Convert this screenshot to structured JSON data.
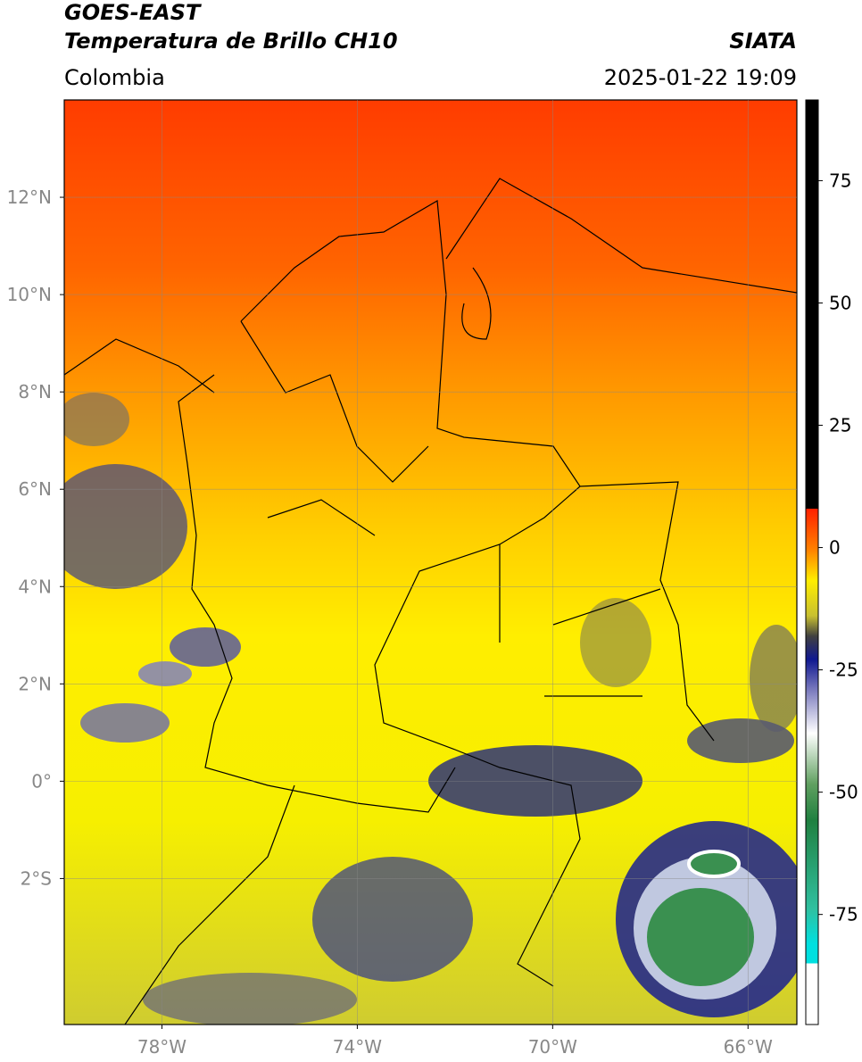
{
  "header": {
    "satellite": "GOES-EAST",
    "product": "Temperatura de Brillo CH10",
    "source": "SIATA",
    "region": "Colombia",
    "datetime": "2025-01-22 19:09"
  },
  "map": {
    "xlim": [
      -80,
      -65
    ],
    "ylim": [
      -5,
      14
    ],
    "xticks": [
      {
        "value": -78,
        "label": "78°W"
      },
      {
        "value": -74,
        "label": "74°W"
      },
      {
        "value": -70,
        "label": "70°W"
      },
      {
        "value": -66,
        "label": "66°W"
      }
    ],
    "yticks": [
      {
        "value": 12,
        "label": "12°N"
      },
      {
        "value": 10,
        "label": "10°N"
      },
      {
        "value": 8,
        "label": "8°N"
      },
      {
        "value": 6,
        "label": "6°N"
      },
      {
        "value": 4,
        "label": "4°N"
      },
      {
        "value": 2,
        "label": "2°N"
      },
      {
        "value": 0,
        "label": "0°"
      },
      {
        "value": -2,
        "label": "2°S"
      }
    ],
    "grid": true
  },
  "colorbar": {
    "lim": [
      -97.5,
      91.5
    ],
    "ticks": [
      75,
      50,
      25,
      0,
      -25,
      -50,
      -75
    ]
  }
}
